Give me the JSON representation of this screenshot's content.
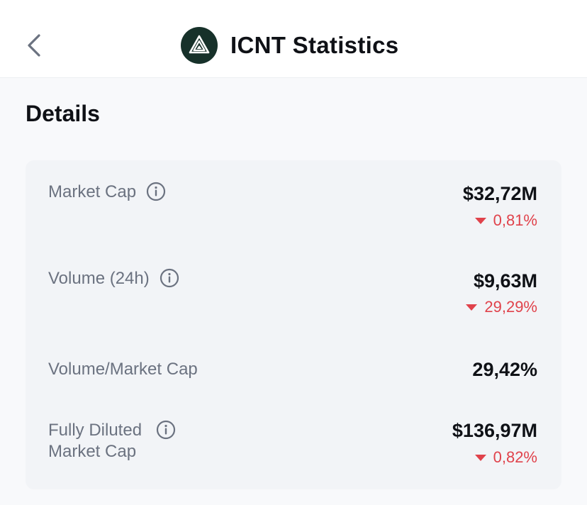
{
  "header": {
    "title": "ICNT Statistics",
    "back_icon": "chevron-left-icon",
    "logo_icon": "icnt-logo-icon"
  },
  "section": {
    "title": "Details"
  },
  "stats": {
    "market_cap": {
      "label": "Market Cap",
      "value": "$32,72M",
      "change": "0,81%",
      "direction": "down"
    },
    "volume_24h": {
      "label": "Volume (24h)",
      "value": "$9,63M",
      "change": "29,29%",
      "direction": "down"
    },
    "volume_market_cap": {
      "label": "Volume/Market Cap",
      "value": "29,42%"
    },
    "fully_diluted": {
      "label": "Fully Diluted\nMarket Cap",
      "value": "$136,97M",
      "change": "0,82%",
      "direction": "down"
    }
  },
  "colors": {
    "negative": "#e0424b",
    "logo_bg": "#17312a",
    "card_bg": "#f2f4f7",
    "label": "#6b7280"
  }
}
